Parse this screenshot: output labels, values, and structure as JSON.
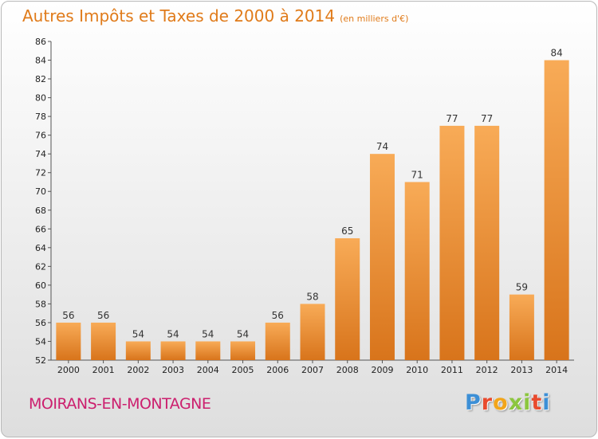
{
  "title": "Autres Impôts et Taxes de 2000 à 2014",
  "subtitle": "(en milliers d'€)",
  "commune": "MOIRANS-EN-MONTAGNE",
  "logo": {
    "letters": [
      "P",
      "r",
      "o",
      "x",
      "i",
      "t",
      "i"
    ],
    "colors": [
      "#3c8fd6",
      "#e84a2d",
      "#f2a51a",
      "#8cc63f",
      "#8cc63f",
      "#e84a2d",
      "#3c8fd6"
    ]
  },
  "colors": {
    "bar_light": "#f8ab57",
    "bar_dark": "#d8741b",
    "title": "#e07b1a",
    "commune": "#cc1f6e"
  },
  "chart_data": {
    "type": "bar",
    "title": "Autres Impôts et Taxes de 2000 à 2014",
    "subtitle": "(en milliers d'€)",
    "categories": [
      "2000",
      "2001",
      "2002",
      "2003",
      "2004",
      "2005",
      "2006",
      "2007",
      "2008",
      "2009",
      "2010",
      "2011",
      "2012",
      "2013",
      "2014"
    ],
    "values": [
      56,
      56,
      54,
      54,
      54,
      54,
      56,
      58,
      65,
      74,
      71,
      77,
      77,
      59,
      84
    ],
    "ylim": [
      52,
      86
    ],
    "yticks": [
      52,
      54,
      56,
      58,
      60,
      62,
      64,
      66,
      68,
      70,
      72,
      74,
      76,
      78,
      80,
      82,
      84,
      86
    ],
    "grid": false,
    "data_labels": true
  }
}
